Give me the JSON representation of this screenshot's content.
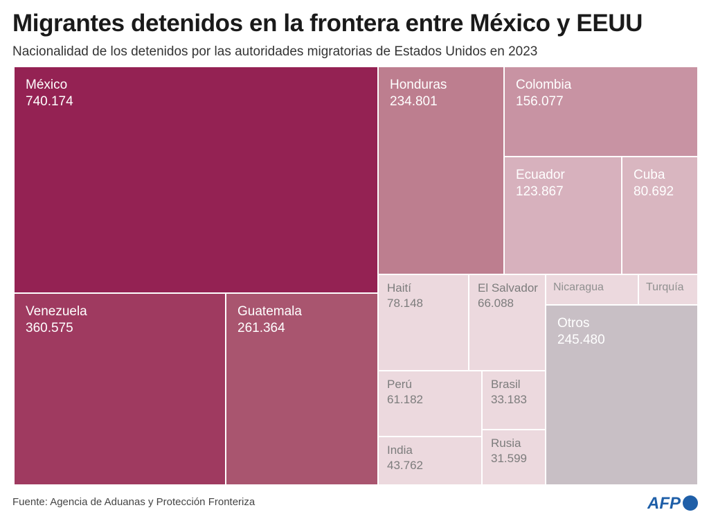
{
  "header": {
    "title": "Migrantes detenidos en la frontera entre México y EEUU",
    "subtitle": "Nacionalidad de los detenidos por las autoridades migratorias de Estados Unidos en 2023"
  },
  "footer": {
    "source": "Fuente: Agencia de Aduanas y Protección Fronteriza",
    "logo_text": "AFP"
  },
  "chart_data": {
    "type": "treemap",
    "title": "Migrantes detenidos en la frontera entre México y EEUU",
    "subtitle": "Nacionalidad de los detenidos por las autoridades migratorias de Estados Unidos en 2023",
    "items": [
      {
        "name": "México",
        "label": "740.174",
        "value": 740174,
        "color": "#942253",
        "text_color": "#ffffff"
      },
      {
        "name": "Venezuela",
        "label": "360.575",
        "value": 360575,
        "color": "#9f3a60",
        "text_color": "#ffffff"
      },
      {
        "name": "Guatemala",
        "label": "261.364",
        "value": 261364,
        "color": "#a9556f",
        "text_color": "#ffffff"
      },
      {
        "name": "Honduras",
        "label": "234.801",
        "value": 234801,
        "color": "#bd7e8f",
        "text_color": "#ffffff"
      },
      {
        "name": "Colombia",
        "label": "156.077",
        "value": 156077,
        "color": "#c893a3",
        "text_color": "#ffffff"
      },
      {
        "name": "Ecuador",
        "label": "123.867",
        "value": 123867,
        "color": "#d7b1bd",
        "text_color": "#ffffff"
      },
      {
        "name": "Cuba",
        "label": "80.692",
        "value": 80692,
        "color": "#d9b6c0",
        "text_color": "#ffffff"
      },
      {
        "name": "Haití",
        "label": "78.148",
        "value": 78148,
        "color": "#ecd9de",
        "text_color": "#7c7c7c"
      },
      {
        "name": "El Salvador",
        "label": "66.088",
        "value": 66088,
        "color": "#ecd9de",
        "text_color": "#7c7c7c"
      },
      {
        "name": "Nicaragua",
        "label": "",
        "value": null,
        "color": "#ecd9de",
        "text_color": "#909090"
      },
      {
        "name": "Turquía",
        "label": "",
        "value": null,
        "color": "#ecd9de",
        "text_color": "#909090"
      },
      {
        "name": "Otros",
        "label": "245.480",
        "value": 245480,
        "color": "#c8bfc5",
        "text_color": "#ffffff"
      },
      {
        "name": "Perú",
        "label": "61.182",
        "value": 61182,
        "color": "#ecd9de",
        "text_color": "#7c7c7c"
      },
      {
        "name": "Brasil",
        "label": "33.183",
        "value": 33183,
        "color": "#ecd9de",
        "text_color": "#7c7c7c"
      },
      {
        "name": "India",
        "label": "43.762",
        "value": 43762,
        "color": "#ecd9de",
        "text_color": "#7c7c7c"
      },
      {
        "name": "Rusia",
        "label": "31.599",
        "value": 31599,
        "color": "#ecd9de",
        "text_color": "#7c7c7c"
      }
    ]
  }
}
